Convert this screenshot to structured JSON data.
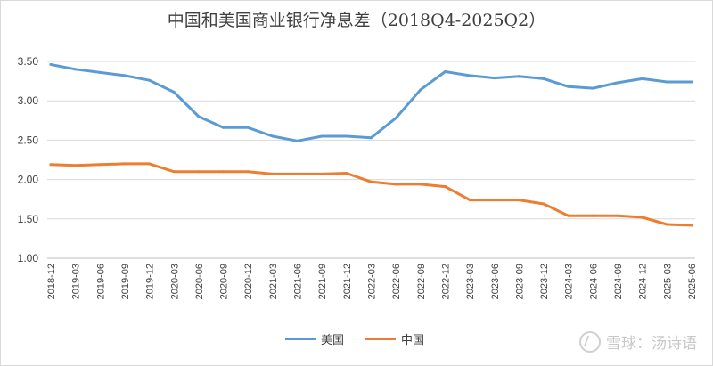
{
  "title": "中国和美国商业银行净息差（2018Q4-2025Q2）",
  "watermark": {
    "text": "雪球：汤诗语",
    "icon": "snowball-logo-icon"
  },
  "chart_data": {
    "type": "line",
    "title": "中国和美国商业银行净息差（2018Q4-2025Q2）",
    "xlabel": "",
    "ylabel": "",
    "ylim": [
      1.0,
      3.5
    ],
    "yticks": [
      "1.00",
      "1.50",
      "2.00",
      "2.50",
      "3.00",
      "3.50"
    ],
    "grid": true,
    "legend_position": "bottom",
    "categories": [
      "2018-12",
      "2019-03",
      "2019-06",
      "2019-09",
      "2019-12",
      "2020-03",
      "2020-06",
      "2020-09",
      "2020-12",
      "2021-03",
      "2021-06",
      "2021-09",
      "2021-12",
      "2022-03",
      "2022-06",
      "2022-09",
      "2022-12",
      "2023-03",
      "2023-06",
      "2023-09",
      "2023-12",
      "2024-03",
      "2024-06",
      "2024-09",
      "2024-12",
      "2025-03",
      "2025-06"
    ],
    "series": [
      {
        "name": "美国",
        "color": "#5b9bd5",
        "values": [
          3.46,
          3.4,
          3.36,
          3.32,
          3.26,
          3.11,
          2.8,
          2.66,
          2.66,
          2.55,
          2.49,
          2.55,
          2.55,
          2.53,
          2.78,
          3.14,
          3.37,
          3.32,
          3.29,
          3.31,
          3.28,
          3.18,
          3.16,
          3.23,
          3.28,
          3.24,
          3.24
        ]
      },
      {
        "name": "中国",
        "color": "#ed7d31",
        "values": [
          2.19,
          2.18,
          2.19,
          2.2,
          2.2,
          2.1,
          2.1,
          2.1,
          2.1,
          2.07,
          2.07,
          2.07,
          2.08,
          1.97,
          1.94,
          1.94,
          1.91,
          1.74,
          1.74,
          1.74,
          1.69,
          1.54,
          1.54,
          1.54,
          1.52,
          1.43,
          1.42
        ]
      }
    ]
  }
}
